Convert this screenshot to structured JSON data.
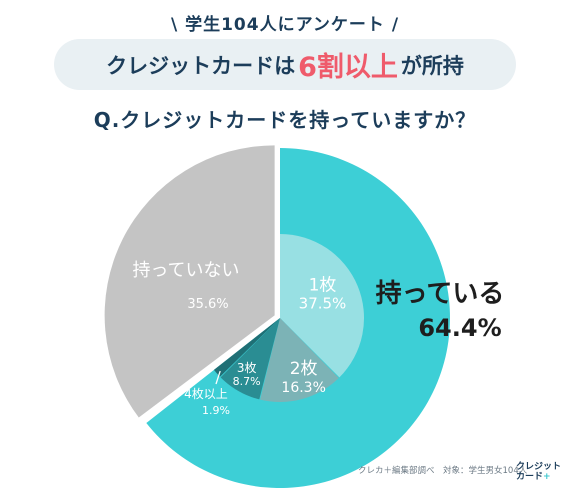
{
  "header": {
    "survey_tag": "\\ 学生104人にアンケート /",
    "headline_pre": "クレジットカードは",
    "headline_highlight": "6割以上",
    "headline_post": "が所持",
    "question": "Q.クレジットカードを持っていますか？"
  },
  "chart_data": {
    "type": "pie",
    "title": "Q.クレジットカードを持っていますか？",
    "slices": [
      {
        "label": "持っている",
        "value": 64.4,
        "value_text": "64.4%",
        "color": "#3dcfd6"
      },
      {
        "label": "持っていない",
        "value": 35.6,
        "value_text": "35.6%",
        "color": "#c4c4c4"
      }
    ],
    "inner_breakdown": {
      "parent": "持っている",
      "slices": [
        {
          "label": "1枚",
          "value": 37.5,
          "value_text": "37.5%",
          "color": "#98e0e3"
        },
        {
          "label": "2枚",
          "value": 16.3,
          "value_text": "16.3%",
          "color": "#7cb3b6"
        },
        {
          "label": "3枚",
          "value": 8.7,
          "value_text": "8.7%",
          "color": "#2a8d93"
        },
        {
          "label": "4枚以上",
          "value": 1.9,
          "value_text": "1.9%",
          "color": "#1f6f75"
        }
      ]
    }
  },
  "footer": {
    "source": "クレカ＋編集部調べ　対象：学生男女104人",
    "logo_line1": "クレジット",
    "logo_line2": "カード",
    "logo_plus": "+"
  },
  "colors": {
    "accent": "#ef5b6b",
    "navy": "#1c3d5a",
    "teal": "#3dcfd6",
    "gray": "#c4c4c4"
  }
}
